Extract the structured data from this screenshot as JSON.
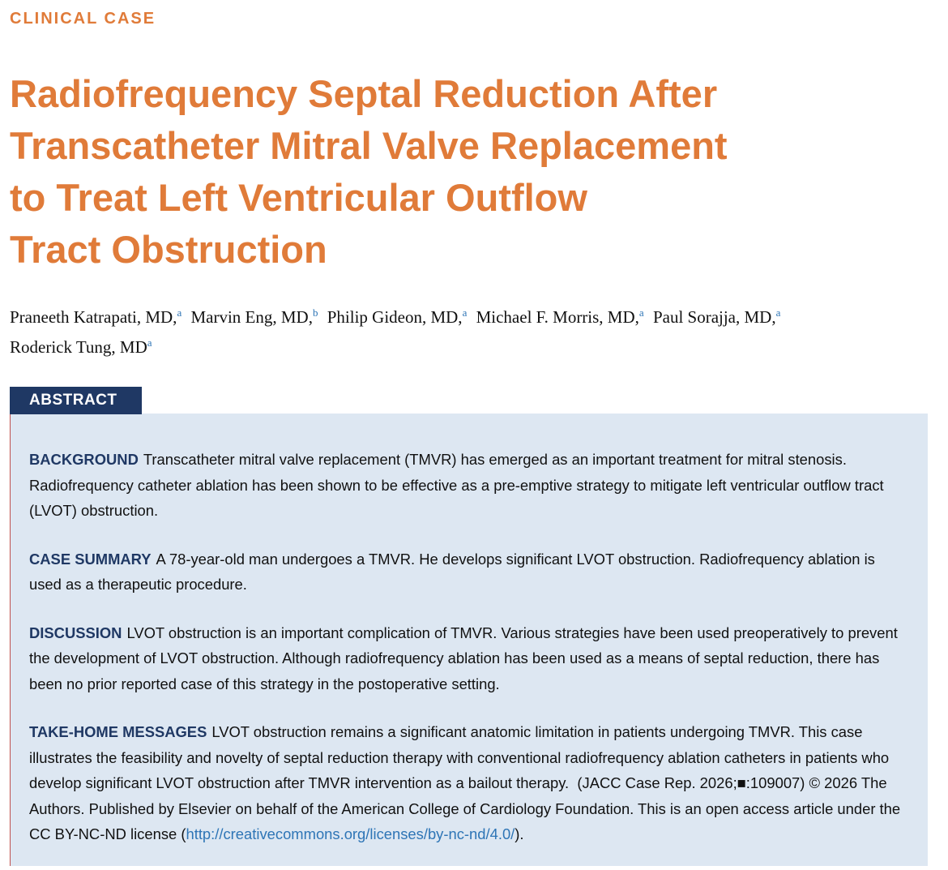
{
  "header": {
    "kicker": "CLINICAL CASE",
    "title_lines": [
      "Radiofrequency Septal Reduction After",
      "Transcatheter Mitral Valve Replacement",
      "to Treat Left Ventricular Outflow",
      "Tract Obstruction"
    ]
  },
  "authors": [
    {
      "name": "Praneeth Katrapati, MD,",
      "affiliation": "a"
    },
    {
      "name": "Marvin Eng, MD,",
      "affiliation": "b"
    },
    {
      "name": "Philip Gideon, MD,",
      "affiliation": "a"
    },
    {
      "name": "Michael F. Morris, MD,",
      "affiliation": "a"
    },
    {
      "name": "Paul Sorajja, MD,",
      "affiliation": "a"
    },
    {
      "name": "Roderick Tung, MD",
      "affiliation": "a"
    }
  ],
  "abstract": {
    "heading": "ABSTRACT",
    "sections": [
      {
        "label": "BACKGROUND",
        "text": "Transcatheter mitral valve replacement (TMVR) has emerged as an important treatment for mitral stenosis. Radiofrequency catheter ablation has been shown to be effective as a pre-emptive strategy to mitigate left ventricular outflow tract (LVOT) obstruction."
      },
      {
        "label": "CASE SUMMARY",
        "text": "A 78-year-old man undergoes a TMVR. He develops significant LVOT obstruction. Radiofrequency ablation is used as a therapeutic procedure."
      },
      {
        "label": "DISCUSSION",
        "text": "LVOT obstruction is an important complication of TMVR. Various strategies have been used preoperatively to prevent the development of LVOT obstruction. Although radiofrequency ablation has been used as a means of septal reduction, there has been no prior reported case of this strategy in the postoperative setting."
      },
      {
        "label": "TAKE-HOME MESSAGES",
        "text": "LVOT obstruction remains a significant anatomic limitation in patients undergoing TMVR. This case illustrates the feasibility and novelty of septal reduction therapy with conventional radiofrequency ablation catheters in patients who develop significant LVOT obstruction after TMVR intervention as a bailout therapy."
      }
    ],
    "citation": "(JACC Case Rep. 2026;■:109007) © 2026 The Authors. Published by Elsevier on behalf of the American College of Cardiology Foundation. This is an open access article under the CC BY-NC-ND license (",
    "license_link": "http://creativecommons.org/licenses/by-nc-nd/4.0/",
    "citation_end": ")."
  }
}
